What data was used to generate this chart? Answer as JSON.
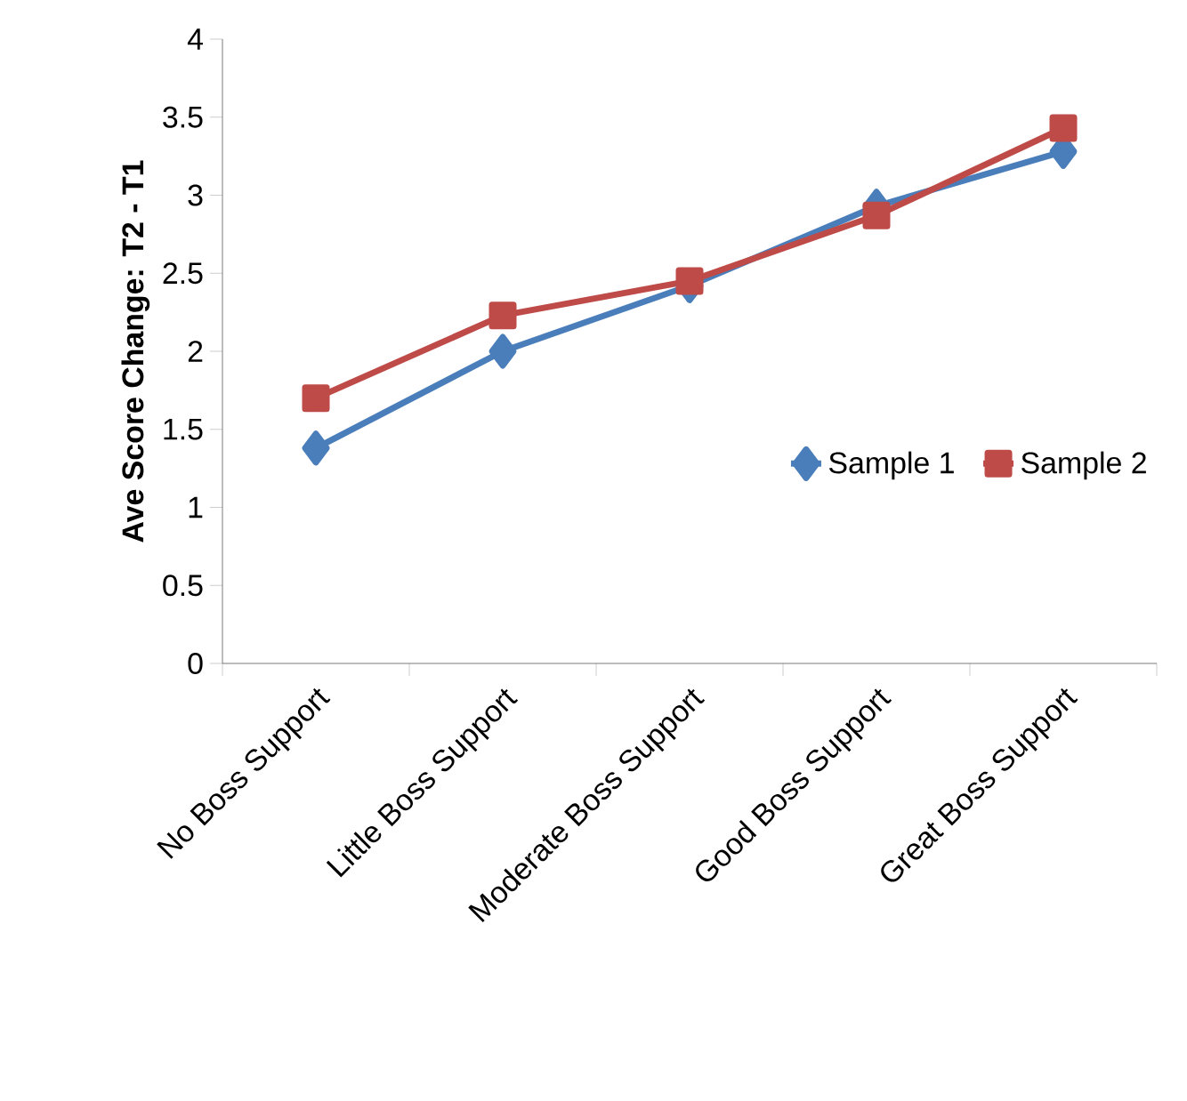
{
  "chart_data": {
    "type": "line",
    "ylabel": "Ave Score Change: T2 - T1",
    "categories": [
      "No Boss Support",
      "Little Boss Support",
      "Moderate Boss Support",
      "Good Boss Support",
      "Great Boss Support"
    ],
    "series": [
      {
        "name": "Sample 1",
        "color": "#4a7ebb",
        "marker": "diamond",
        "values": [
          1.38,
          2.0,
          2.42,
          2.93,
          3.28
        ]
      },
      {
        "name": "Sample 2",
        "color": "#be4b48",
        "marker": "square",
        "values": [
          1.7,
          2.23,
          2.45,
          2.87,
          3.43
        ]
      }
    ],
    "ylim": [
      0,
      4
    ],
    "yticks": [
      0,
      0.5,
      1,
      1.5,
      2,
      2.5,
      3,
      3.5,
      4
    ],
    "grid": false,
    "legend": "right",
    "line_style": "solid"
  }
}
